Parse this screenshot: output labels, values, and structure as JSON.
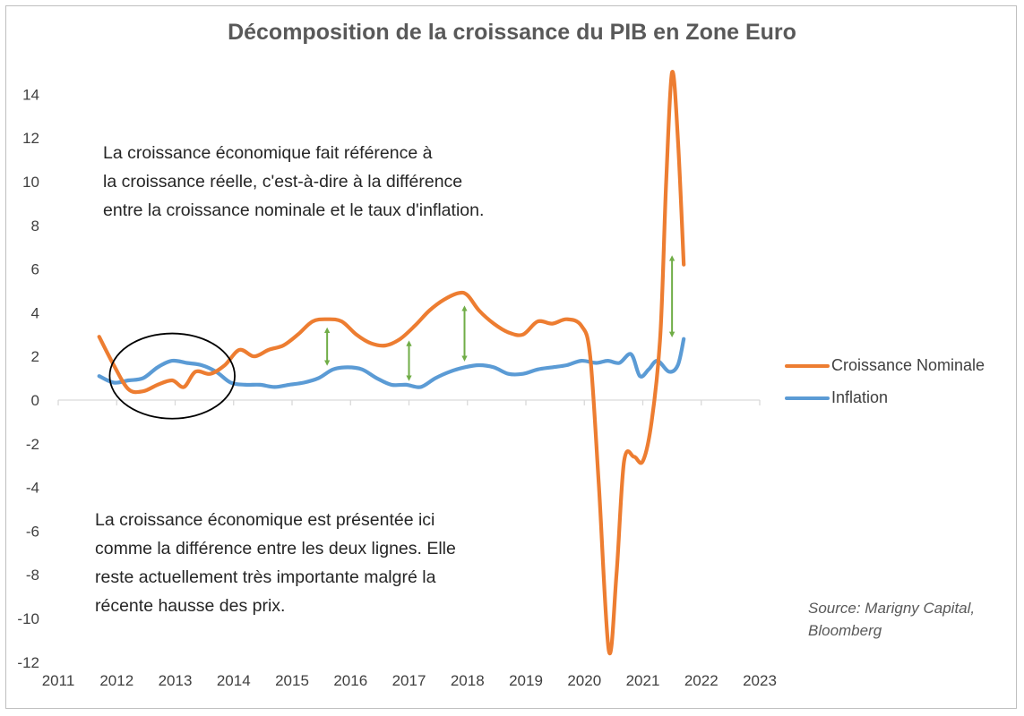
{
  "chart_data": {
    "type": "line",
    "title": "Décomposition de la croissance du PIB en Zone Euro",
    "xlabel": "",
    "ylabel": "",
    "xlim": [
      2011,
      2023
    ],
    "ylim": [
      -12,
      15
    ],
    "x_ticks": [
      "2011",
      "2012",
      "2013",
      "2014",
      "2015",
      "2016",
      "2017",
      "2018",
      "2019",
      "2020",
      "2021",
      "2022",
      "2023"
    ],
    "y_ticks": [
      "-12",
      "-10",
      "-8",
      "-6",
      "-4",
      "-2",
      "0",
      "2",
      "4",
      "6",
      "8",
      "10",
      "12",
      "14"
    ],
    "grid": false,
    "legend_position": "right",
    "series": [
      {
        "name": "Croissance Nominale",
        "color": "#ED7D31",
        "x": [
          2011.7,
          2011.95,
          2012.2,
          2012.45,
          2012.7,
          2012.95,
          2013.15,
          2013.35,
          2013.6,
          2013.85,
          2014.1,
          2014.35,
          2014.6,
          2014.85,
          2015.1,
          2015.35,
          2015.6,
          2015.85,
          2016.1,
          2016.35,
          2016.6,
          2016.85,
          2017.1,
          2017.35,
          2017.6,
          2017.85,
          2018.0,
          2018.2,
          2018.45,
          2018.7,
          2018.95,
          2019.2,
          2019.45,
          2019.7,
          2019.95,
          2020.1,
          2020.25,
          2020.42,
          2020.55,
          2020.68,
          2020.85,
          2021.0,
          2021.15,
          2021.3,
          2021.4,
          2021.5,
          2021.6,
          2021.7
        ],
        "values": [
          2.9,
          1.6,
          0.5,
          0.4,
          0.7,
          0.9,
          0.6,
          1.3,
          1.2,
          1.6,
          2.3,
          2.0,
          2.3,
          2.5,
          3.0,
          3.6,
          3.7,
          3.6,
          3.0,
          2.6,
          2.5,
          2.8,
          3.4,
          4.1,
          4.6,
          4.9,
          4.8,
          4.1,
          3.5,
          3.1,
          3.0,
          3.6,
          3.5,
          3.7,
          3.4,
          2.0,
          -4.0,
          -11.5,
          -8.0,
          -2.8,
          -2.6,
          -2.8,
          -1.0,
          3.0,
          10.0,
          15.0,
          12.0,
          6.2
        ]
      },
      {
        "name": "Inflation",
        "color": "#5B9BD5",
        "x": [
          2011.7,
          2011.95,
          2012.2,
          2012.45,
          2012.7,
          2012.95,
          2013.2,
          2013.45,
          2013.7,
          2013.95,
          2014.2,
          2014.45,
          2014.7,
          2014.95,
          2015.2,
          2015.45,
          2015.7,
          2015.95,
          2016.2,
          2016.45,
          2016.7,
          2016.95,
          2017.2,
          2017.45,
          2017.7,
          2017.95,
          2018.2,
          2018.45,
          2018.7,
          2018.95,
          2019.2,
          2019.45,
          2019.7,
          2019.95,
          2020.2,
          2020.4,
          2020.6,
          2020.8,
          2020.95,
          2021.1,
          2021.25,
          2021.45,
          2021.6,
          2021.7
        ],
        "values": [
          1.1,
          0.8,
          0.9,
          1.0,
          1.5,
          1.8,
          1.7,
          1.6,
          1.3,
          0.8,
          0.7,
          0.7,
          0.6,
          0.7,
          0.8,
          1.0,
          1.4,
          1.5,
          1.4,
          1.0,
          0.7,
          0.7,
          0.6,
          1.0,
          1.3,
          1.5,
          1.6,
          1.5,
          1.2,
          1.2,
          1.4,
          1.5,
          1.6,
          1.8,
          1.7,
          1.8,
          1.7,
          2.1,
          1.1,
          1.4,
          1.8,
          1.3,
          1.6,
          2.8
        ]
      }
    ],
    "annotations": [
      {
        "type": "double-arrow",
        "x": 2015.6,
        "y_top": 3.2,
        "y_bottom": 1.7,
        "color": "#70AD47"
      },
      {
        "type": "double-arrow",
        "x": 2017.0,
        "y_top": 2.6,
        "y_bottom": 1.0,
        "color": "#70AD47"
      },
      {
        "type": "double-arrow",
        "x": 2017.95,
        "y_top": 4.2,
        "y_bottom": 1.9,
        "color": "#70AD47"
      },
      {
        "type": "double-arrow",
        "x": 2021.5,
        "y_top": 6.5,
        "y_bottom": 3.0,
        "color": "#70AD47"
      },
      {
        "type": "ellipse",
        "cx": 2012.95,
        "cy": 1.1,
        "rx": 1.07,
        "ry": 1.95,
        "color": "#000000"
      }
    ]
  },
  "legend": [
    {
      "label": "Croissance Nominale",
      "color": "#ED7D31"
    },
    {
      "label": "Inflation",
      "color": "#5B9BD5"
    }
  ],
  "notes": {
    "top": "La croissance économique fait référence à\nla croissance réelle, c'est-à-dire à la différence\nentre la croissance nominale et le taux d'inflation.",
    "bottom": "La croissance économique est présentée ici\ncomme la différence entre les deux lignes. Elle\nreste actuellement très importante malgré la\nrécente hausse des prix."
  },
  "source": "Source: Marigny Capital,\n Bloomberg"
}
